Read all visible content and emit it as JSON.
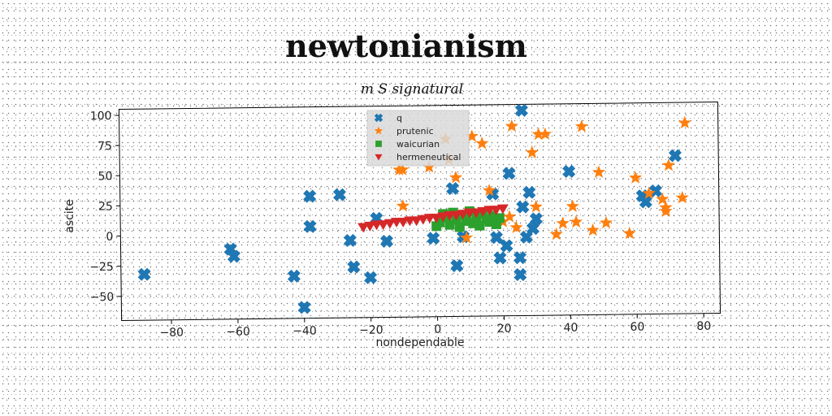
{
  "chart_data": {
    "type": "scatter",
    "title": "newtonianism",
    "subtitle": "m S signatural",
    "xlabel": "nondependable",
    "ylabel": "ascite",
    "xlim": [
      -95,
      85
    ],
    "ylim": [
      -70,
      105
    ],
    "x_ticks": [
      -80,
      -60,
      -40,
      -20,
      0,
      20,
      40,
      60,
      80
    ],
    "x_tick_labels": [
      "−80",
      "−60",
      "−40",
      "−20",
      "0",
      "20",
      "40",
      "60",
      "80"
    ],
    "y_ticks": [
      -50,
      -25,
      0,
      25,
      50,
      75,
      100
    ],
    "y_tick_labels": [
      "−50",
      "−25",
      "0",
      "25",
      "50",
      "75",
      "100"
    ],
    "grid": false,
    "legend_position": "top-center",
    "series": [
      {
        "name": "q",
        "marker": "x",
        "color": "#1f77b4",
        "points": [
          [
            -88,
            -32
          ],
          [
            -62,
            -12
          ],
          [
            -61,
            -18
          ],
          [
            -43,
            -35
          ],
          [
            -40,
            -61
          ],
          [
            -38,
            31
          ],
          [
            -38,
            6
          ],
          [
            -29,
            32
          ],
          [
            -26,
            -6
          ],
          [
            -25,
            -28
          ],
          [
            -20,
            -37
          ],
          [
            -18,
            12
          ],
          [
            -15,
            -7
          ],
          [
            -1,
            -5
          ],
          [
            5,
            36
          ],
          [
            6,
            -28
          ],
          [
            8,
            -4
          ],
          [
            17,
            31
          ],
          [
            18,
            -5
          ],
          [
            19,
            -22
          ],
          [
            21,
            -12
          ],
          [
            22,
            48
          ],
          [
            25,
            -22
          ],
          [
            25,
            -36
          ],
          [
            26,
            100
          ],
          [
            26,
            20
          ],
          [
            27,
            -5
          ],
          [
            28,
            32
          ],
          [
            29,
            2
          ],
          [
            30,
            10
          ],
          [
            40,
            49
          ],
          [
            62,
            28
          ],
          [
            63,
            23
          ],
          [
            66,
            32
          ],
          [
            72,
            61
          ]
        ]
      },
      {
        "name": "prutenic",
        "marker": "star",
        "color": "#ff7f0e",
        "points": [
          [
            -11,
            52
          ],
          [
            -10,
            52
          ],
          [
            -10,
            22
          ],
          [
            -2,
            54
          ],
          [
            3,
            77
          ],
          [
            4,
            60
          ],
          [
            6,
            45
          ],
          [
            9,
            -5
          ],
          [
            11,
            79
          ],
          [
            14,
            73
          ],
          [
            16,
            34
          ],
          [
            20,
            8
          ],
          [
            22,
            12
          ],
          [
            23,
            87
          ],
          [
            24,
            3
          ],
          [
            29,
            65
          ],
          [
            30,
            20
          ],
          [
            31,
            80
          ],
          [
            33,
            80
          ],
          [
            36,
            -3
          ],
          [
            38,
            6
          ],
          [
            41,
            20
          ],
          [
            42,
            7
          ],
          [
            44,
            86
          ],
          [
            47,
            0
          ],
          [
            49,
            48
          ],
          [
            51,
            6
          ],
          [
            58,
            -3
          ],
          [
            60,
            43
          ],
          [
            64,
            30
          ],
          [
            68,
            25
          ],
          [
            69,
            18
          ],
          [
            69,
            15
          ],
          [
            70,
            53
          ],
          [
            74,
            26
          ],
          [
            75,
            88
          ]
        ]
      },
      {
        "name": "waicurian",
        "marker": "square",
        "color": "#2ca02c",
        "points": [
          [
            0,
            5
          ],
          [
            1,
            8
          ],
          [
            2,
            15
          ],
          [
            3,
            12
          ],
          [
            4,
            6
          ],
          [
            5,
            16
          ],
          [
            6,
            10
          ],
          [
            7,
            4
          ],
          [
            8,
            14
          ],
          [
            9,
            9
          ],
          [
            10,
            17
          ],
          [
            11,
            7
          ],
          [
            12,
            12
          ],
          [
            13,
            5
          ],
          [
            14,
            15
          ],
          [
            15,
            10
          ],
          [
            16,
            8
          ],
          [
            17,
            13
          ],
          [
            18,
            6
          ],
          [
            19,
            11
          ]
        ]
      },
      {
        "name": "hermeneutical",
        "marker": "triangle-down",
        "color": "#d62728",
        "points": [
          [
            -22,
            5
          ],
          [
            -20,
            6
          ],
          [
            -18,
            7
          ],
          [
            -16,
            7
          ],
          [
            -14,
            8
          ],
          [
            -12,
            9
          ],
          [
            -10,
            9
          ],
          [
            -8,
            10
          ],
          [
            -6,
            10
          ],
          [
            -4,
            11
          ],
          [
            -2,
            12
          ],
          [
            0,
            12
          ],
          [
            2,
            13
          ],
          [
            4,
            14
          ],
          [
            6,
            14
          ],
          [
            8,
            15
          ],
          [
            10,
            16
          ],
          [
            12,
            16
          ],
          [
            14,
            17
          ],
          [
            16,
            18
          ],
          [
            18,
            18
          ],
          [
            20,
            19
          ]
        ]
      }
    ]
  }
}
